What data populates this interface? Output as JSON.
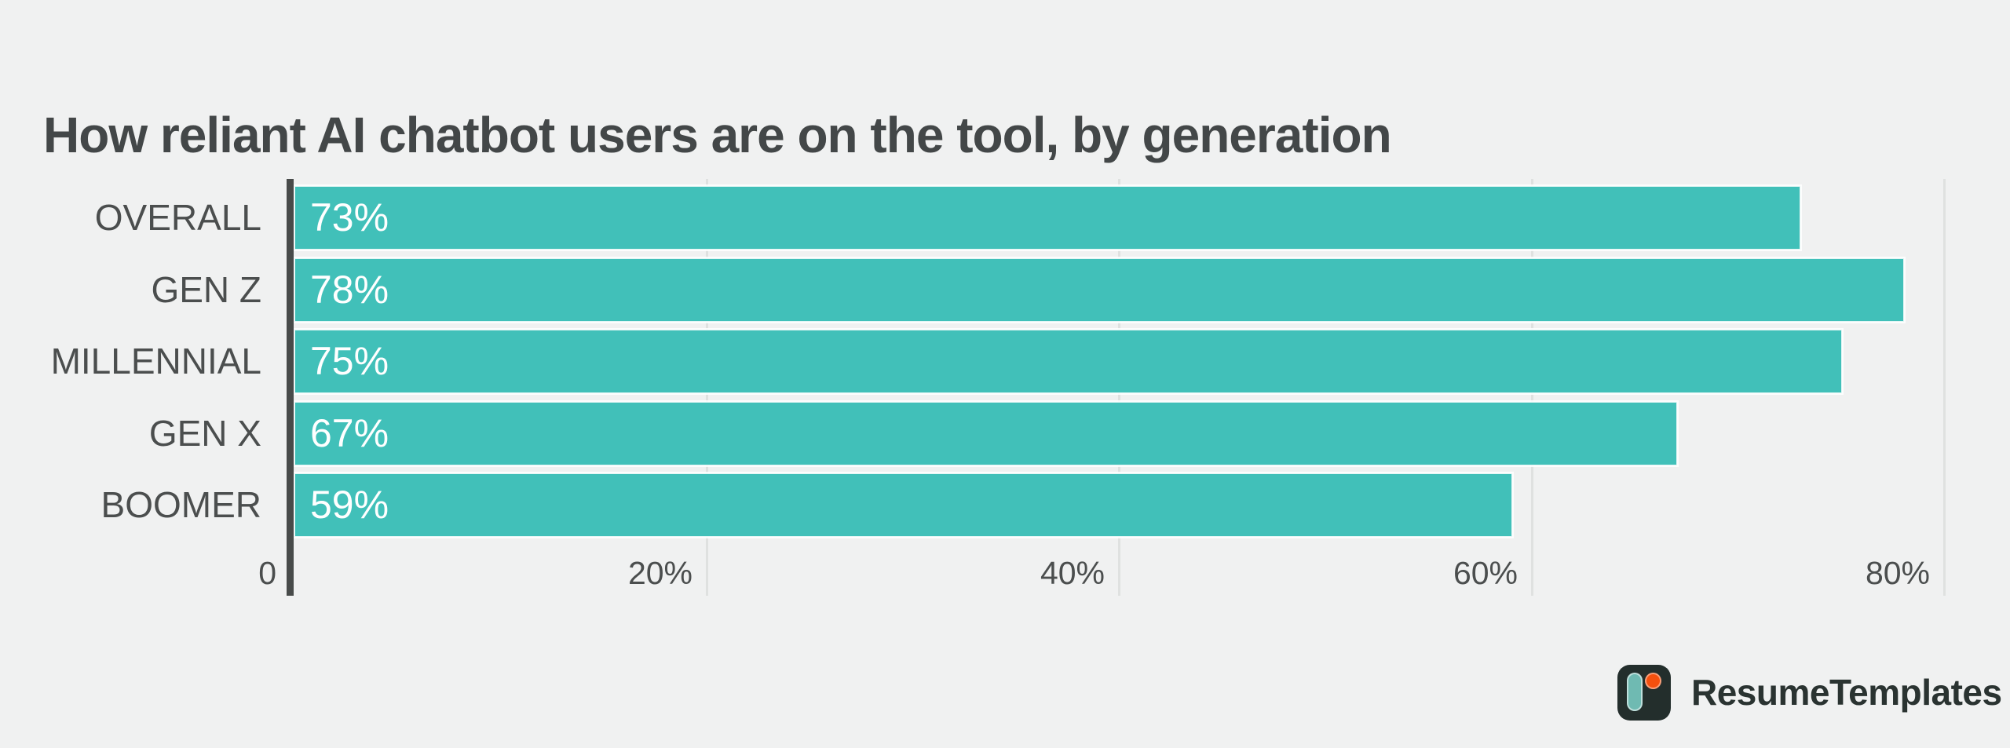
{
  "title": "How reliant AI chatbot users are on the tool, by generation",
  "chart_data": {
    "type": "bar",
    "orientation": "horizontal",
    "title": "How reliant AI chatbot users are on the tool, by generation",
    "categories": [
      "OVERALL",
      "GEN Z",
      "MILLENNIAL",
      "GEN X",
      "BOOMER"
    ],
    "values": [
      73,
      78,
      75,
      67,
      59
    ],
    "value_labels": [
      "73%",
      "78%",
      "75%",
      "67%",
      "59%"
    ],
    "xlabel": "",
    "ylabel": "",
    "xlim": [
      0,
      80
    ],
    "x_ticks": [
      {
        "value": 0,
        "label": "0"
      },
      {
        "value": 20,
        "label": "20%"
      },
      {
        "value": 40,
        "label": "40%"
      },
      {
        "value": 60,
        "label": "60%"
      },
      {
        "value": 80,
        "label": "80%"
      }
    ],
    "grid": true,
    "legend": "none",
    "bar_color": "#41c0b9"
  },
  "colors": {
    "background": "#f0f1f1",
    "bar": "#41c0b9",
    "axis_line": "#484b4a",
    "gridline": "#dfe1e0",
    "title_text": "#434748",
    "label_text": "#4b4e4e",
    "value_text": "#ffffff"
  },
  "branding": {
    "logo_text": "ResumeTemplates",
    "logo_text_color": "#2a3331",
    "logo_mark_color": "#232e2c",
    "logo_pill_color": "#6fbab2",
    "logo_dot_color": "#f4500e"
  }
}
